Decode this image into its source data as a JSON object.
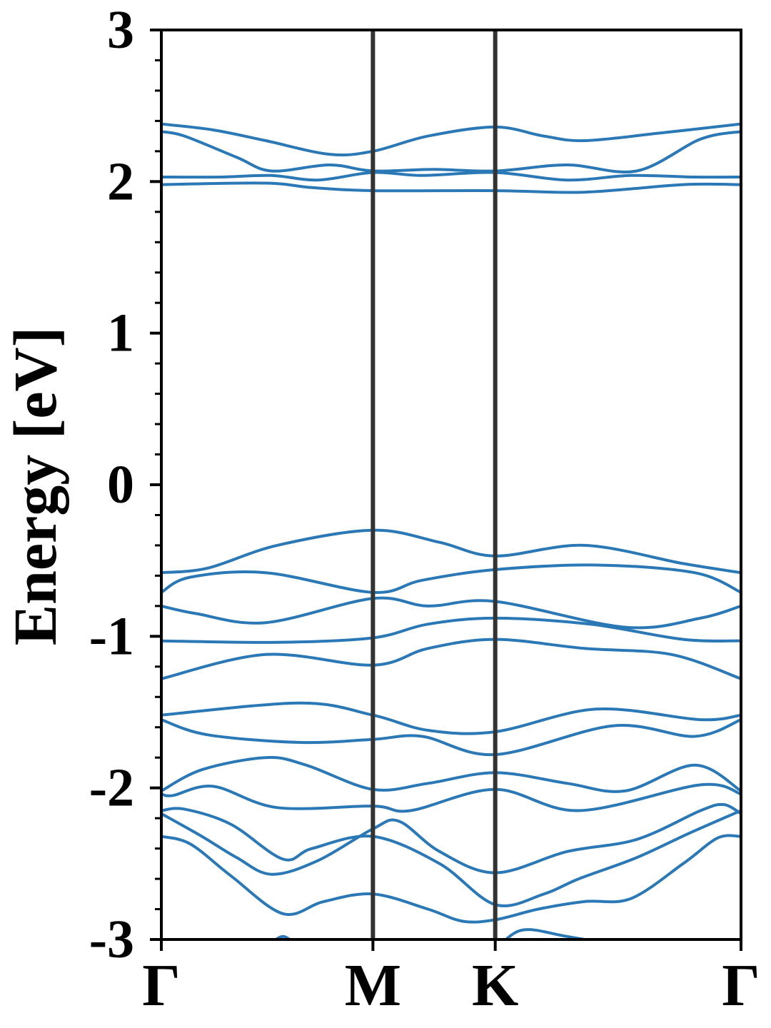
{
  "chart_data": {
    "type": "line",
    "title": "",
    "xlabel": "",
    "ylabel": "Energy [eV]",
    "ylim": [
      -3,
      3
    ],
    "xlim": [
      0,
      1
    ],
    "yticks": [
      -3,
      -2,
      -1,
      0,
      1,
      2,
      3
    ],
    "ytick_labels": [
      "-3",
      "-2",
      "-1",
      "0",
      "1",
      "2",
      "3"
    ],
    "yminor_step": 0.2,
    "high_symmetry_points": [
      {
        "label": "Γ",
        "x": 0.0
      },
      {
        "label": "M",
        "x": 0.365
      },
      {
        "label": "K",
        "x": 0.576
      },
      {
        "label": "Γ",
        "x": 1.0
      }
    ],
    "grid": false,
    "legend": "none",
    "colors": {
      "band": "#2a78b5",
      "kpath_line": "#333333",
      "axis": "#000000"
    },
    "series": [
      {
        "values": [
          [
            0,
            2.38
          ],
          [
            0.09,
            2.34
          ],
          [
            0.18,
            2.27
          ],
          [
            0.29,
            2.18
          ],
          [
            0.365,
            2.2
          ],
          [
            0.46,
            2.3
          ],
          [
            0.576,
            2.36
          ],
          [
            0.66,
            2.3
          ],
          [
            0.73,
            2.27
          ],
          [
            0.86,
            2.32
          ],
          [
            1.0,
            2.38
          ]
        ]
      },
      {
        "values": [
          [
            0,
            2.33
          ],
          [
            0.04,
            2.3
          ],
          [
            0.13,
            2.16
          ],
          [
            0.19,
            2.07
          ],
          [
            0.29,
            2.11
          ],
          [
            0.365,
            2.07
          ],
          [
            0.47,
            2.08
          ],
          [
            0.576,
            2.07
          ],
          [
            0.7,
            2.11
          ],
          [
            0.82,
            2.07
          ],
          [
            0.93,
            2.28
          ],
          [
            1.0,
            2.33
          ]
        ]
      },
      {
        "values": [
          [
            0,
            2.03
          ],
          [
            0.1,
            2.03
          ],
          [
            0.19,
            2.04
          ],
          [
            0.27,
            2.01
          ],
          [
            0.365,
            2.06
          ],
          [
            0.45,
            2.04
          ],
          [
            0.576,
            2.06
          ],
          [
            0.7,
            2.01
          ],
          [
            0.81,
            2.04
          ],
          [
            0.92,
            2.03
          ],
          [
            1.0,
            2.03
          ]
        ]
      },
      {
        "values": [
          [
            0,
            1.98
          ],
          [
            0.18,
            1.99
          ],
          [
            0.26,
            1.96
          ],
          [
            0.365,
            1.94
          ],
          [
            0.576,
            1.94
          ],
          [
            0.73,
            1.93
          ],
          [
            0.9,
            1.98
          ],
          [
            1.0,
            1.98
          ]
        ]
      },
      {
        "values": [
          [
            0,
            -0.58
          ],
          [
            0.08,
            -0.55
          ],
          [
            0.2,
            -0.4
          ],
          [
            0.365,
            -0.3
          ],
          [
            0.48,
            -0.38
          ],
          [
            0.576,
            -0.47
          ],
          [
            0.73,
            -0.4
          ],
          [
            0.9,
            -0.52
          ],
          [
            1.0,
            -0.58
          ]
        ]
      },
      {
        "values": [
          [
            0,
            -0.71
          ],
          [
            0.05,
            -0.61
          ],
          [
            0.18,
            -0.58
          ],
          [
            0.365,
            -0.71
          ],
          [
            0.45,
            -0.63
          ],
          [
            0.576,
            -0.56
          ],
          [
            0.75,
            -0.53
          ],
          [
            0.92,
            -0.58
          ],
          [
            1.0,
            -0.71
          ]
        ]
      },
      {
        "values": [
          [
            0,
            -0.8
          ],
          [
            0.06,
            -0.85
          ],
          [
            0.18,
            -0.91
          ],
          [
            0.365,
            -0.75
          ],
          [
            0.46,
            -0.8
          ],
          [
            0.576,
            -0.77
          ],
          [
            0.8,
            -0.94
          ],
          [
            0.93,
            -0.88
          ],
          [
            1.0,
            -0.8
          ]
        ]
      },
      {
        "values": [
          [
            0,
            -1.03
          ],
          [
            0.2,
            -1.04
          ],
          [
            0.365,
            -1.01
          ],
          [
            0.46,
            -0.92
          ],
          [
            0.576,
            -0.88
          ],
          [
            0.74,
            -0.92
          ],
          [
            0.9,
            -1.02
          ],
          [
            1.0,
            -1.03
          ]
        ]
      },
      {
        "values": [
          [
            0,
            -1.28
          ],
          [
            0.18,
            -1.12
          ],
          [
            0.365,
            -1.19
          ],
          [
            0.46,
            -1.08
          ],
          [
            0.576,
            -1.02
          ],
          [
            0.73,
            -1.08
          ],
          [
            0.88,
            -1.12
          ],
          [
            1.0,
            -1.28
          ]
        ]
      },
      {
        "values": [
          [
            0,
            -1.52
          ],
          [
            0.24,
            -1.44
          ],
          [
            0.365,
            -1.52
          ],
          [
            0.46,
            -1.62
          ],
          [
            0.576,
            -1.63
          ],
          [
            0.75,
            -1.48
          ],
          [
            0.93,
            -1.55
          ],
          [
            1.0,
            -1.52
          ]
        ]
      },
      {
        "values": [
          [
            0,
            -1.55
          ],
          [
            0.08,
            -1.65
          ],
          [
            0.24,
            -1.7
          ],
          [
            0.365,
            -1.68
          ],
          [
            0.45,
            -1.66
          ],
          [
            0.576,
            -1.78
          ],
          [
            0.78,
            -1.59
          ],
          [
            0.92,
            -1.66
          ],
          [
            1.0,
            -1.55
          ]
        ]
      },
      {
        "values": [
          [
            0,
            -2.02
          ],
          [
            0.07,
            -1.88
          ],
          [
            0.18,
            -1.8
          ],
          [
            0.25,
            -1.85
          ],
          [
            0.365,
            -2.01
          ],
          [
            0.46,
            -1.97
          ],
          [
            0.576,
            -1.9
          ],
          [
            0.7,
            -1.97
          ],
          [
            0.8,
            -2.02
          ],
          [
            0.92,
            -1.85
          ],
          [
            1.0,
            -2.02
          ]
        ]
      },
      {
        "values": [
          [
            0,
            -2.04
          ],
          [
            0.02,
            -2.05
          ],
          [
            0.09,
            -1.99
          ],
          [
            0.2,
            -2.13
          ],
          [
            0.365,
            -2.12
          ],
          [
            0.43,
            -2.15
          ],
          [
            0.576,
            -2.01
          ],
          [
            0.72,
            -2.15
          ],
          [
            0.93,
            -1.98
          ],
          [
            1.0,
            -2.04
          ]
        ]
      },
      {
        "values": [
          [
            0,
            -2.15
          ],
          [
            0.04,
            -2.14
          ],
          [
            0.12,
            -2.24
          ],
          [
            0.21,
            -2.47
          ],
          [
            0.26,
            -2.4
          ],
          [
            0.365,
            -2.32
          ],
          [
            0.48,
            -2.5
          ],
          [
            0.576,
            -2.77
          ],
          [
            0.66,
            -2.7
          ],
          [
            0.72,
            -2.6
          ],
          [
            0.82,
            -2.46
          ],
          [
            0.91,
            -2.3
          ],
          [
            1.0,
            -2.15
          ]
        ]
      },
      {
        "values": [
          [
            0,
            -2.17
          ],
          [
            0.07,
            -2.32
          ],
          [
            0.13,
            -2.46
          ],
          [
            0.19,
            -2.57
          ],
          [
            0.27,
            -2.48
          ],
          [
            0.365,
            -2.27
          ],
          [
            0.41,
            -2.22
          ],
          [
            0.48,
            -2.42
          ],
          [
            0.576,
            -2.56
          ],
          [
            0.7,
            -2.42
          ],
          [
            0.82,
            -2.34
          ],
          [
            0.93,
            -2.15
          ],
          [
            0.97,
            -2.11
          ],
          [
            1.0,
            -2.17
          ]
        ]
      },
      {
        "values": [
          [
            0,
            -2.32
          ],
          [
            0.05,
            -2.37
          ],
          [
            0.12,
            -2.58
          ],
          [
            0.21,
            -2.83
          ],
          [
            0.28,
            -2.75
          ],
          [
            0.365,
            -2.7
          ],
          [
            0.46,
            -2.8
          ],
          [
            0.52,
            -2.88
          ],
          [
            0.576,
            -2.87
          ],
          [
            0.65,
            -2.8
          ],
          [
            0.73,
            -2.75
          ],
          [
            0.81,
            -2.73
          ],
          [
            0.9,
            -2.5
          ],
          [
            0.96,
            -2.33
          ],
          [
            1.0,
            -2.32
          ]
        ]
      },
      {
        "values": [
          [
            0.18,
            -3.05
          ],
          [
            0.21,
            -2.98
          ],
          [
            0.235,
            -3.05
          ]
        ]
      },
      {
        "values": [
          [
            0.57,
            -3.1
          ],
          [
            0.62,
            -2.94
          ],
          [
            0.7,
            -2.98
          ],
          [
            0.8,
            -3.05
          ]
        ]
      }
    ]
  }
}
